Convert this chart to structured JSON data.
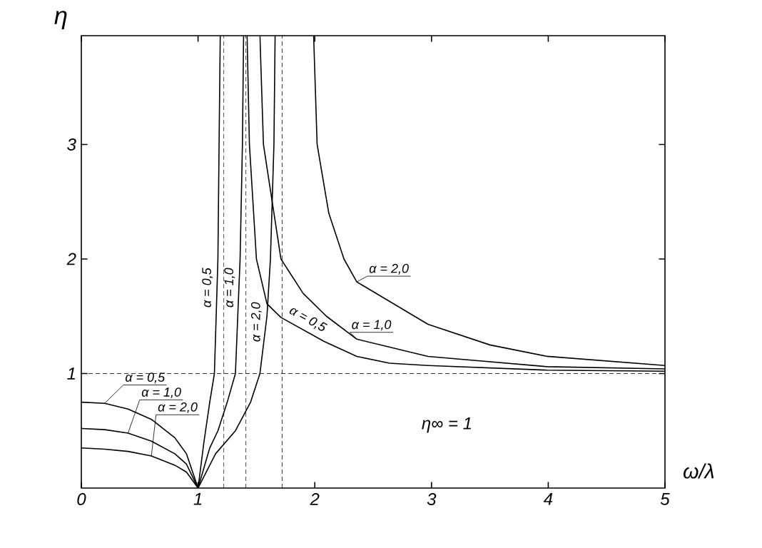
{
  "chart_data": {
    "type": "line",
    "xlabel": "ω/λ",
    "ylabel": "η",
    "xlim": [
      0,
      5
    ],
    "ylim": [
      0,
      3.95
    ],
    "xticks": [
      0,
      1,
      2,
      3,
      4,
      5
    ],
    "yticks": [
      1,
      2,
      3
    ],
    "grid": false,
    "marker": "none",
    "line_style": "solid",
    "ref_lines": [
      {
        "axis": "y",
        "value": 1,
        "label": "η∞ = 1",
        "line_style": "dashed"
      },
      {
        "axis": "x",
        "value": 1.22,
        "line_style": "dashed"
      },
      {
        "axis": "x",
        "value": 1.41,
        "line_style": "dashed"
      },
      {
        "axis": "x",
        "value": 1.72,
        "line_style": "dashed"
      }
    ],
    "series": [
      {
        "name": "α = 0,5",
        "color": "#000000",
        "x": [
          0,
          0.2,
          0.4,
          0.6,
          0.8,
          0.9,
          1
        ],
        "values": [
          0.75,
          0.74,
          0.69,
          0.6,
          0.44,
          0.3,
          0
        ]
      },
      {
        "name": "α = 1,0",
        "color": "#000000",
        "x": [
          0,
          0.2,
          0.4,
          0.6,
          0.8,
          0.9,
          1
        ],
        "values": [
          0.52,
          0.51,
          0.48,
          0.41,
          0.3,
          0.21,
          0
        ]
      },
      {
        "name": "α = 2,0",
        "color": "#000000",
        "x": [
          0,
          0.2,
          0.4,
          0.6,
          0.8,
          0.9,
          1
        ],
        "values": [
          0.35,
          0.34,
          0.32,
          0.28,
          0.2,
          0.14,
          0
        ]
      },
      {
        "name": "α = 0,5",
        "color": "#000000",
        "x": [
          1,
          1.05,
          1.1,
          1.14,
          1.17,
          1.18,
          1.19
        ],
        "values": [
          0,
          0.4,
          0.75,
          1.0,
          2.0,
          3.0,
          3.95
        ]
      },
      {
        "name": "α = 1,0",
        "color": "#000000",
        "x": [
          1,
          1.1,
          1.17,
          1.25,
          1.32,
          1.36,
          1.38,
          1.39
        ],
        "values": [
          0,
          0.35,
          0.5,
          0.75,
          1.0,
          2.0,
          3.0,
          3.95
        ]
      },
      {
        "name": "α = 2,0",
        "color": "#000000",
        "x": [
          1,
          1.15,
          1.32,
          1.45,
          1.53,
          1.59,
          1.62,
          1.65,
          1.66
        ],
        "values": [
          0,
          0.3,
          0.5,
          0.75,
          1.0,
          1.5,
          2.0,
          3.0,
          3.95
        ]
      },
      {
        "name": "α = 2,0",
        "color": "#000000",
        "x": [
          1.99,
          2.02,
          2.12,
          2.25,
          2.36,
          2.97,
          3.5,
          3.99,
          5
        ],
        "values": [
          3.95,
          3.0,
          2.4,
          2.0,
          1.8,
          1.43,
          1.25,
          1.15,
          1.07
        ]
      },
      {
        "name": "α = 1,0",
        "color": "#000000",
        "x": [
          1.53,
          1.56,
          1.71,
          1.9,
          2.1,
          2.36,
          2.97,
          3.99,
          5
        ],
        "values": [
          3.95,
          3.0,
          2.0,
          1.7,
          1.5,
          1.3,
          1.15,
          1.06,
          1.04
        ]
      },
      {
        "name": "α = 0,5",
        "color": "#000000",
        "x": [
          1.42,
          1.44,
          1.5,
          1.59,
          1.71,
          2.08,
          2.36,
          2.64,
          2.97,
          3.99,
          5
        ],
        "values": [
          3.95,
          3.0,
          2.0,
          1.61,
          1.49,
          1.28,
          1.15,
          1.09,
          1.07,
          1.03,
          1.02
        ]
      }
    ]
  }
}
